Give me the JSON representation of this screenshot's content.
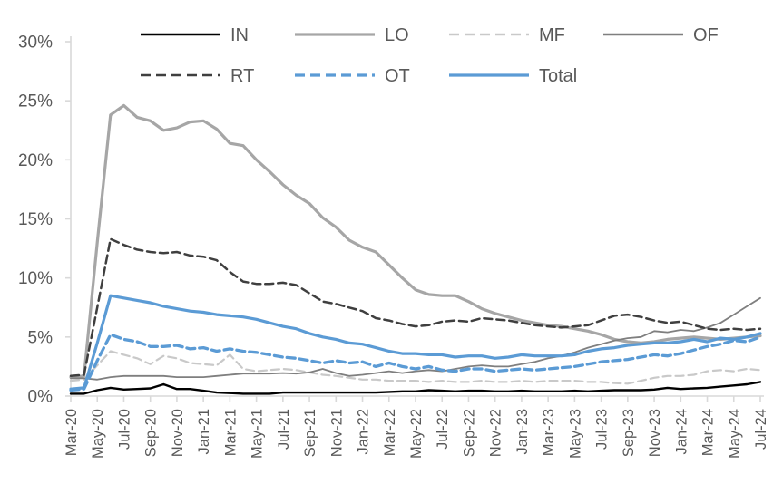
{
  "chart_data": {
    "type": "line",
    "title": "",
    "xlabel": "",
    "ylabel": "",
    "ylim": [
      0,
      30
    ],
    "grid": false,
    "legend_position": "top",
    "axis_color": "#D9D9D9",
    "text_color": "#595959",
    "y_tick_labels": [
      "0%",
      "5%",
      "10%",
      "15%",
      "20%",
      "25%",
      "30%"
    ],
    "y_tick_values": [
      0,
      5,
      10,
      15,
      20,
      25,
      30
    ],
    "x": [
      "Mar-20",
      "Apr-20",
      "May-20",
      "Jun-20",
      "Jul-20",
      "Aug-20",
      "Sep-20",
      "Oct-20",
      "Nov-20",
      "Dec-20",
      "Jan-21",
      "Feb-21",
      "Mar-21",
      "Apr-21",
      "May-21",
      "Jun-21",
      "Jul-21",
      "Aug-21",
      "Sep-21",
      "Oct-21",
      "Nov-21",
      "Dec-21",
      "Jan-22",
      "Feb-22",
      "Mar-22",
      "Apr-22",
      "May-22",
      "Jun-22",
      "Jul-22",
      "Aug-22",
      "Sep-22",
      "Oct-22",
      "Nov-22",
      "Dec-22",
      "Jan-23",
      "Feb-23",
      "Mar-23",
      "Apr-23",
      "May-23",
      "Jun-23",
      "Jul-23",
      "Aug-23",
      "Sep-23",
      "Oct-23",
      "Nov-23",
      "Dec-23",
      "Jan-24",
      "Feb-24",
      "Mar-24",
      "Apr-24",
      "May-24",
      "Jun-24",
      "Jul-24"
    ],
    "x_tick_labels": [
      "Mar-20",
      "May-20",
      "Jul-20",
      "Sep-20",
      "Nov-20",
      "Jan-21",
      "Mar-21",
      "May-21",
      "Jul-21",
      "Sep-21",
      "Nov-21",
      "Jan-22",
      "Mar-22",
      "May-22",
      "Jul-22",
      "Sep-22",
      "Nov-22",
      "Jan-23",
      "Mar-23",
      "May-23",
      "Jul-23",
      "Sep-23",
      "Nov-23",
      "Jan-24",
      "Mar-24",
      "May-24",
      "Jul-24"
    ],
    "series": [
      {
        "name": "IN",
        "color": "#000000",
        "dash": false,
        "width": 2.4,
        "values": [
          0.2,
          0.2,
          0.5,
          0.7,
          0.55,
          0.6,
          0.65,
          1.0,
          0.6,
          0.6,
          0.45,
          0.3,
          0.25,
          0.2,
          0.2,
          0.2,
          0.3,
          0.3,
          0.3,
          0.3,
          0.3,
          0.3,
          0.3,
          0.3,
          0.35,
          0.4,
          0.4,
          0.5,
          0.45,
          0.4,
          0.45,
          0.45,
          0.4,
          0.4,
          0.45,
          0.4,
          0.4,
          0.4,
          0.45,
          0.4,
          0.45,
          0.5,
          0.5,
          0.5,
          0.55,
          0.7,
          0.6,
          0.65,
          0.7,
          0.8,
          0.9,
          1.0,
          1.2
        ]
      },
      {
        "name": "LO",
        "color": "#A6A6A6",
        "dash": false,
        "width": 3.2,
        "values": [
          1.6,
          1.7,
          13.0,
          23.8,
          24.6,
          23.6,
          23.3,
          22.5,
          22.7,
          23.2,
          23.3,
          22.6,
          21.4,
          21.2,
          20.0,
          19.0,
          17.9,
          17.0,
          16.3,
          15.1,
          14.3,
          13.2,
          12.6,
          12.2,
          11.1,
          10.0,
          9.0,
          8.6,
          8.5,
          8.5,
          8.0,
          7.4,
          7.0,
          6.7,
          6.4,
          6.2,
          6.0,
          5.9,
          5.7,
          5.5,
          5.2,
          4.8,
          4.6,
          4.5,
          4.6,
          4.8,
          4.9,
          5.0,
          4.9,
          4.8,
          4.9,
          5.0,
          5.1
        ]
      },
      {
        "name": "MF",
        "color": "#C9C9C9",
        "dash": true,
        "width": 2.2,
        "values": [
          1.3,
          1.4,
          2.6,
          3.8,
          3.5,
          3.2,
          2.7,
          3.4,
          3.2,
          2.8,
          2.7,
          2.6,
          3.5,
          2.3,
          2.1,
          2.2,
          2.3,
          2.2,
          2.0,
          1.8,
          1.7,
          1.55,
          1.4,
          1.4,
          1.3,
          1.3,
          1.3,
          1.2,
          1.3,
          1.2,
          1.2,
          1.3,
          1.2,
          1.2,
          1.3,
          1.2,
          1.3,
          1.3,
          1.3,
          1.2,
          1.2,
          1.1,
          1.05,
          1.3,
          1.55,
          1.7,
          1.7,
          1.8,
          2.1,
          2.2,
          2.1,
          2.3,
          2.2
        ]
      },
      {
        "name": "OF",
        "color": "#7F7F7F",
        "dash": false,
        "width": 1.8,
        "values": [
          1.5,
          1.5,
          1.4,
          1.6,
          1.7,
          1.7,
          1.7,
          1.7,
          1.6,
          1.6,
          1.6,
          1.7,
          1.8,
          1.9,
          1.9,
          1.9,
          1.95,
          1.9,
          2.0,
          2.3,
          1.95,
          1.7,
          1.8,
          1.95,
          2.1,
          1.95,
          2.1,
          2.2,
          2.1,
          2.3,
          2.5,
          2.6,
          2.5,
          2.5,
          2.7,
          2.9,
          3.2,
          3.4,
          3.7,
          4.1,
          4.4,
          4.7,
          4.9,
          5.0,
          5.5,
          5.4,
          5.6,
          5.5,
          5.8,
          6.2,
          6.9,
          7.6,
          8.3
        ]
      },
      {
        "name": "RT",
        "color": "#3F3F3F",
        "dash": true,
        "width": 2.5,
        "values": [
          1.7,
          1.8,
          7.5,
          13.3,
          12.8,
          12.4,
          12.2,
          12.1,
          12.2,
          11.9,
          11.8,
          11.5,
          10.5,
          9.7,
          9.5,
          9.5,
          9.6,
          9.4,
          8.7,
          8.0,
          7.8,
          7.5,
          7.2,
          6.6,
          6.4,
          6.1,
          5.9,
          6.0,
          6.3,
          6.4,
          6.3,
          6.6,
          6.5,
          6.4,
          6.2,
          6.0,
          5.9,
          5.8,
          5.9,
          6.0,
          6.4,
          6.8,
          6.9,
          6.7,
          6.4,
          6.2,
          6.3,
          6.0,
          5.7,
          5.6,
          5.7,
          5.6,
          5.7
        ]
      },
      {
        "name": "OT",
        "color": "#5B9BD5",
        "dash": true,
        "width": 3.3,
        "values": [
          0.5,
          0.6,
          3.0,
          5.2,
          4.8,
          4.6,
          4.2,
          4.2,
          4.3,
          4.0,
          4.1,
          3.8,
          4.0,
          3.8,
          3.7,
          3.5,
          3.3,
          3.2,
          3.0,
          2.8,
          3.0,
          2.8,
          2.9,
          2.5,
          2.8,
          2.5,
          2.3,
          2.5,
          2.2,
          2.1,
          2.3,
          2.3,
          2.1,
          2.2,
          2.3,
          2.2,
          2.3,
          2.4,
          2.5,
          2.7,
          2.9,
          3.0,
          3.1,
          3.3,
          3.5,
          3.4,
          3.6,
          3.9,
          4.2,
          4.4,
          4.7,
          4.6,
          5.0
        ]
      },
      {
        "name": "Total",
        "color": "#5B9BD5",
        "dash": false,
        "width": 3.2,
        "values": [
          0.6,
          0.7,
          4.5,
          8.5,
          8.3,
          8.1,
          7.9,
          7.6,
          7.4,
          7.2,
          7.1,
          6.9,
          6.8,
          6.7,
          6.5,
          6.2,
          5.9,
          5.7,
          5.3,
          5.0,
          4.8,
          4.5,
          4.4,
          4.1,
          3.8,
          3.6,
          3.6,
          3.5,
          3.5,
          3.3,
          3.4,
          3.4,
          3.2,
          3.3,
          3.5,
          3.4,
          3.4,
          3.4,
          3.5,
          3.8,
          4.0,
          4.1,
          4.3,
          4.4,
          4.5,
          4.5,
          4.6,
          4.8,
          4.6,
          4.9,
          4.8,
          5.0,
          5.3
        ]
      }
    ],
    "legend_rows": [
      [
        "IN",
        "LO",
        "MF",
        "OF"
      ],
      [
        "RT",
        "OT",
        "Total"
      ]
    ]
  }
}
